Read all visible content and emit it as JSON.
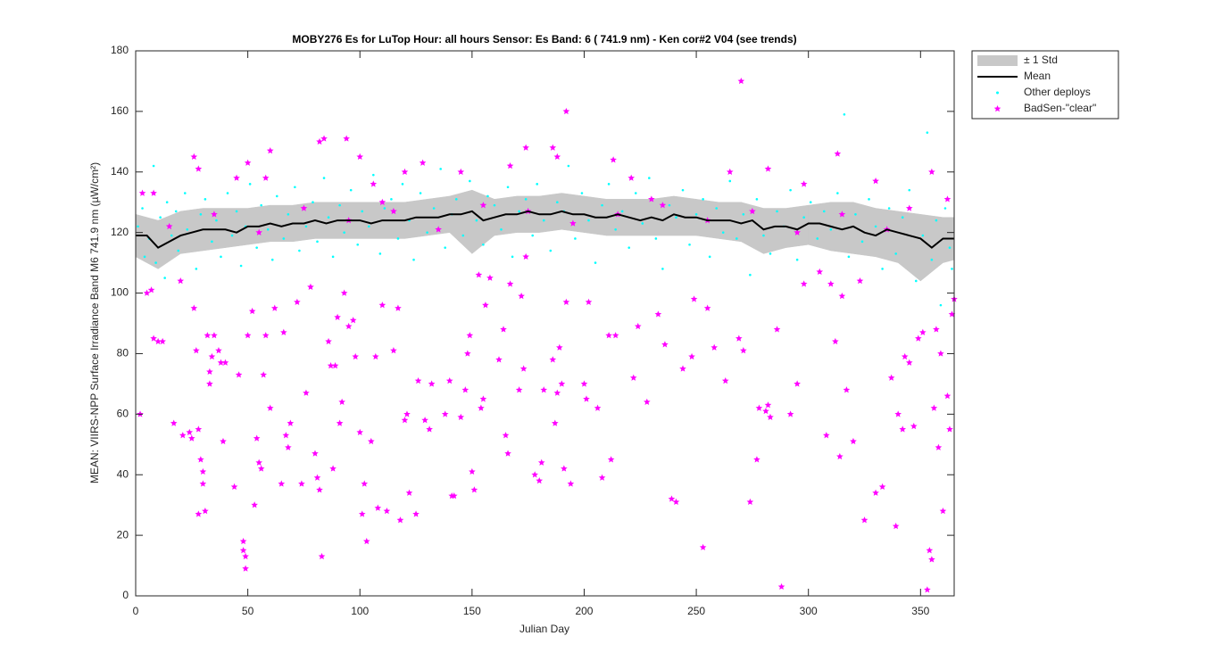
{
  "chart_data": {
    "type": "scatter",
    "title": "MOBY276   Es for LuTop  Hour: all hours  Sensor: Es Band: 6 ( 741.9 nm)   - Ken cor#2 V04 (see trends)",
    "xlabel": "Julian Day",
    "ylabel": "MEAN: VIIRS-NPP Surface Irradiance Band M6 741.9 nm (µW/cm²)",
    "xlim": [
      0,
      365
    ],
    "ylim": [
      0,
      180
    ],
    "xticks": [
      0,
      50,
      100,
      150,
      200,
      250,
      300,
      350
    ],
    "yticks": [
      0,
      20,
      40,
      60,
      80,
      100,
      120,
      140,
      160,
      180
    ],
    "legend": "outside-right",
    "series": [
      {
        "name": "± 1 Std",
        "kind": "band",
        "color": "#c8c8c8",
        "x": [
          0,
          10,
          20,
          30,
          40,
          50,
          60,
          70,
          80,
          90,
          100,
          110,
          120,
          130,
          140,
          150,
          160,
          170,
          180,
          190,
          200,
          210,
          220,
          230,
          240,
          250,
          260,
          270,
          280,
          290,
          300,
          310,
          320,
          330,
          340,
          350,
          360,
          365
        ],
        "low": [
          112,
          108,
          113,
          114,
          115,
          116,
          117,
          117,
          118,
          118,
          118,
          118,
          118,
          119,
          120,
          113,
          119,
          120,
          120,
          121,
          120,
          119,
          119,
          119,
          119,
          119,
          118,
          117,
          113,
          115,
          116,
          114,
          113,
          112,
          110,
          104,
          110,
          111
        ],
        "high": [
          126,
          124,
          127,
          128,
          128,
          128,
          129,
          129,
          130,
          130,
          130,
          130,
          130,
          131,
          132,
          134,
          131,
          132,
          132,
          133,
          132,
          131,
          131,
          131,
          132,
          131,
          130,
          130,
          128,
          128,
          129,
          130,
          130,
          128,
          127,
          126,
          125,
          125
        ]
      },
      {
        "name": "Mean",
        "kind": "line",
        "color": "#000000",
        "x": [
          0,
          5,
          10,
          15,
          20,
          25,
          30,
          35,
          40,
          45,
          50,
          55,
          60,
          65,
          70,
          75,
          80,
          85,
          90,
          95,
          100,
          105,
          110,
          115,
          120,
          125,
          130,
          135,
          140,
          145,
          150,
          155,
          160,
          165,
          170,
          175,
          180,
          185,
          190,
          195,
          200,
          205,
          210,
          215,
          220,
          225,
          230,
          235,
          240,
          245,
          250,
          255,
          260,
          265,
          270,
          275,
          280,
          285,
          290,
          295,
          300,
          305,
          310,
          315,
          320,
          325,
          330,
          335,
          340,
          345,
          350,
          355,
          360,
          365
        ],
        "values": [
          119,
          119,
          115,
          117,
          119,
          120,
          121,
          121,
          121,
          120,
          122,
          122,
          123,
          122,
          123,
          123,
          124,
          123,
          124,
          124,
          124,
          123,
          124,
          124,
          124,
          125,
          125,
          125,
          126,
          126,
          127,
          124,
          125,
          126,
          126,
          127,
          126,
          126,
          127,
          126,
          126,
          125,
          125,
          126,
          125,
          124,
          125,
          124,
          126,
          125,
          125,
          124,
          124,
          124,
          123,
          124,
          121,
          122,
          122,
          121,
          123,
          123,
          122,
          121,
          122,
          120,
          119,
          121,
          120,
          119,
          118,
          115,
          118,
          118
        ]
      },
      {
        "name": "Other deploys",
        "kind": "dots",
        "color": "#00ffff",
        "x": [
          1,
          3,
          4,
          6,
          8,
          9,
          11,
          13,
          14,
          16,
          18,
          19,
          22,
          23,
          27,
          29,
          31,
          34,
          36,
          38,
          41,
          43,
          45,
          47,
          49,
          51,
          54,
          56,
          59,
          61,
          63,
          66,
          68,
          71,
          73,
          76,
          79,
          81,
          84,
          86,
          88,
          91,
          93,
          96,
          99,
          101,
          104,
          106,
          109,
          111,
          114,
          117,
          119,
          122,
          124,
          127,
          130,
          133,
          136,
          138,
          141,
          143,
          146,
          149,
          152,
          155,
          157,
          160,
          163,
          166,
          168,
          171,
          174,
          177,
          179,
          182,
          185,
          188,
          191,
          193,
          196,
          199,
          202,
          205,
          208,
          211,
          214,
          217,
          220,
          223,
          226,
          229,
          232,
          235,
          238,
          241,
          244,
          247,
          250,
          253,
          256,
          259,
          262,
          265,
          268,
          271,
          274,
          277,
          280,
          283,
          286,
          289,
          292,
          295,
          298,
          301,
          304,
          307,
          310,
          313,
          316,
          318,
          321,
          324,
          327,
          330,
          333,
          336,
          339,
          342,
          345,
          348,
          351,
          353,
          355,
          357,
          359,
          361,
          363,
          364
        ],
        "values": [
          122,
          128,
          112,
          118,
          142,
          110,
          125,
          105,
          130,
          119,
          127,
          114,
          133,
          121,
          108,
          126,
          131,
          117,
          124,
          112,
          133,
          119,
          127,
          109,
          122,
          136,
          115,
          129,
          121,
          111,
          132,
          118,
          126,
          135,
          114,
          122,
          130,
          117,
          138,
          125,
          112,
          129,
          120,
          134,
          116,
          127,
          122,
          139,
          113,
          128,
          131,
          118,
          136,
          124,
          111,
          133,
          120,
          128,
          141,
          115,
          126,
          131,
          119,
          137,
          124,
          116,
          132,
          129,
          121,
          135,
          112,
          127,
          131,
          119,
          136,
          124,
          114,
          130,
          127,
          142,
          118,
          133,
          124,
          110,
          129,
          136,
          121,
          127,
          115,
          133,
          123,
          138,
          118,
          108,
          129,
          125,
          134,
          116,
          126,
          131,
          112,
          128,
          120,
          137,
          118,
          126,
          106,
          131,
          119,
          113,
          127,
          122,
          134,
          111,
          125,
          130,
          118,
          127,
          121,
          133,
          159,
          112,
          126,
          117,
          131,
          122,
          108,
          128,
          113,
          125,
          134,
          104,
          119,
          153,
          111,
          124,
          96,
          128,
          115,
          108
        ]
      },
      {
        "name": "BadSen-\"clear\"",
        "kind": "stars",
        "color": "#ff00ff",
        "x": [
          2,
          5,
          7,
          8,
          10,
          12,
          17,
          20,
          21,
          24,
          25,
          26,
          27,
          28,
          28,
          29,
          30,
          30,
          31,
          32,
          33,
          33,
          34,
          35,
          37,
          38,
          39,
          40,
          44,
          46,
          48,
          48,
          49,
          49,
          50,
          52,
          53,
          54,
          55,
          56,
          57,
          58,
          60,
          62,
          65,
          66,
          67,
          68,
          69,
          72,
          74,
          76,
          78,
          80,
          81,
          82,
          83,
          86,
          87,
          88,
          89,
          90,
          91,
          92,
          93,
          95,
          97,
          98,
          100,
          101,
          102,
          103,
          105,
          107,
          108,
          110,
          112,
          115,
          117,
          118,
          120,
          121,
          122,
          125,
          126,
          129,
          131,
          132,
          138,
          140,
          141,
          142,
          145,
          147,
          148,
          149,
          150,
          151,
          153,
          154,
          155,
          156,
          158,
          162,
          164,
          165,
          166,
          167,
          171,
          172,
          173,
          174,
          178,
          180,
          181,
          182,
          186,
          187,
          188,
          189,
          190,
          191,
          192,
          194,
          200,
          201,
          202,
          206,
          208,
          211,
          212,
          214,
          222,
          224,
          228,
          233,
          236,
          239,
          241,
          244,
          248,
          249,
          253,
          255,
          258,
          263,
          269,
          271,
          274,
          277,
          278,
          281,
          282,
          283,
          286,
          288,
          292,
          295,
          298,
          305,
          308,
          310,
          312,
          314,
          315,
          317,
          320,
          323,
          325,
          330,
          333,
          337,
          339,
          340,
          342,
          343,
          345,
          347,
          349,
          351,
          353,
          354,
          355,
          356,
          357,
          358,
          359,
          360,
          362,
          363,
          364,
          365,
          26,
          28,
          45,
          50,
          58,
          60,
          82,
          84,
          94,
          100,
          106,
          120,
          128,
          145,
          167,
          174,
          186,
          188,
          192,
          213,
          221,
          265,
          270,
          282,
          298,
          313,
          330,
          355,
          362,
          3,
          8,
          15,
          35,
          55,
          75,
          95,
          115,
          135,
          155,
          175,
          195,
          215,
          235,
          255,
          275,
          295,
          315,
          335,
          345,
          110,
          230
        ],
        "values": [
          60,
          100,
          101,
          85,
          84,
          84,
          57,
          104,
          53,
          54,
          52,
          95,
          81,
          27,
          55,
          45,
          41,
          37,
          28,
          86,
          74,
          70,
          79,
          86,
          81,
          77,
          51,
          77,
          36,
          73,
          18,
          15,
          9,
          13,
          86,
          94,
          30,
          52,
          44,
          42,
          73,
          86,
          62,
          95,
          37,
          87,
          53,
          49,
          57,
          97,
          37,
          67,
          102,
          47,
          39,
          35,
          13,
          84,
          76,
          42,
          76,
          92,
          57,
          64,
          100,
          89,
          91,
          79,
          54,
          27,
          37,
          18,
          51,
          79,
          29,
          96,
          28,
          81,
          95,
          25,
          58,
          60,
          34,
          27,
          71,
          58,
          55,
          70,
          60,
          71,
          33,
          33,
          59,
          68,
          80,
          86,
          41,
          35,
          106,
          62,
          65,
          96,
          105,
          78,
          88,
          53,
          47,
          103,
          68,
          99,
          75,
          112,
          40,
          38,
          44,
          68,
          78,
          57,
          67,
          82,
          70,
          42,
          97,
          37,
          70,
          65,
          97,
          62,
          39,
          86,
          45,
          86,
          72,
          89,
          64,
          93,
          83,
          32,
          31,
          75,
          79,
          98,
          16,
          95,
          82,
          71,
          85,
          81,
          31,
          45,
          62,
          61,
          63,
          59,
          88,
          3,
          60,
          70,
          103,
          107,
          53,
          103,
          84,
          46,
          99,
          68,
          51,
          104,
          25,
          34,
          36,
          72,
          23,
          60,
          55,
          79,
          77,
          56,
          85,
          87,
          2,
          15,
          12,
          62,
          88,
          49,
          80,
          28,
          66,
          55,
          93,
          98,
          145,
          141,
          138,
          143,
          138,
          147,
          150,
          151,
          151,
          145,
          136,
          140,
          143,
          140,
          142,
          148,
          148,
          145,
          160,
          144,
          138,
          140,
          170,
          141,
          136,
          146,
          137,
          140,
          131,
          133,
          133,
          122,
          126,
          120,
          128,
          124,
          127,
          121,
          129,
          127,
          123,
          126,
          129,
          124,
          127,
          120,
          126,
          121,
          128,
          130,
          131
        ]
      }
    ]
  }
}
